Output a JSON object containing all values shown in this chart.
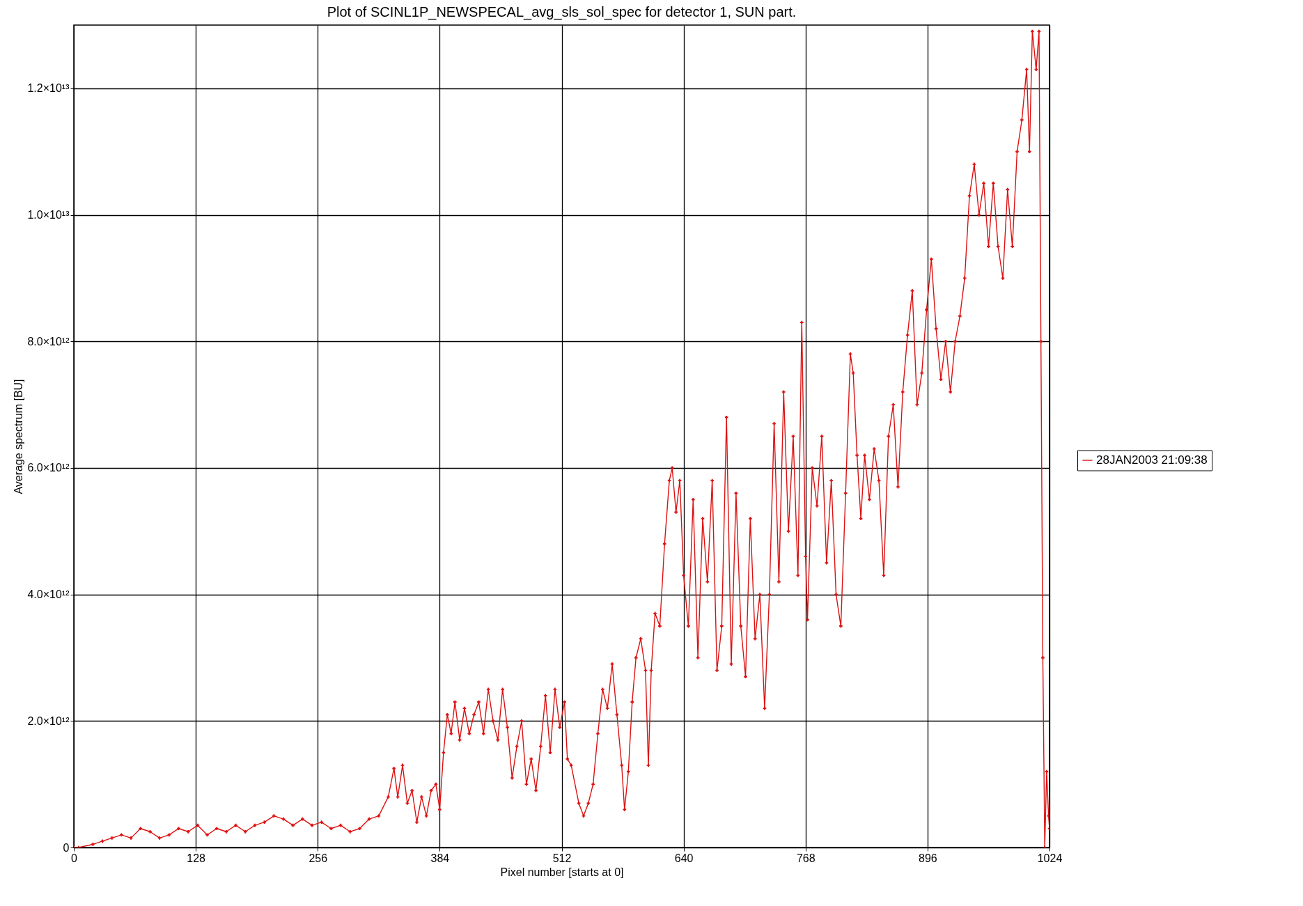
{
  "chart_data": {
    "type": "line",
    "title": "Plot of SCINL1P_NEWSPECAL_avg_sls_sol_spec for detector 1, SUN part.",
    "xlabel": "Pixel number [starts at 0]",
    "ylabel": "Average spectrum [BU]",
    "xlim": [
      0,
      1024
    ],
    "xticks": [
      0,
      128,
      256,
      384,
      512,
      640,
      768,
      896,
      1024
    ],
    "ylim": [
      0,
      13000000000000.0
    ],
    "yticks": [
      0,
      {
        "value": 2000000000000.0,
        "label": "2.0×10¹²"
      },
      {
        "value": 4000000000000.0,
        "label": "4.0×10¹²"
      },
      {
        "value": 6000000000000.0,
        "label": "6.0×10¹²"
      },
      {
        "value": 8000000000000.0,
        "label": "8.0×10¹²"
      },
      {
        "value": 10000000000000.0,
        "label": "1.0×10¹³"
      },
      {
        "value": 12000000000000.0,
        "label": "1.2×10¹³"
      }
    ],
    "grid": true,
    "legend": "right",
    "marker": "cross",
    "line_style": "solid",
    "x": [
      0,
      5,
      20,
      30,
      40,
      50,
      60,
      70,
      80,
      90,
      100,
      110,
      120,
      130,
      140,
      150,
      160,
      170,
      180,
      190,
      200,
      210,
      220,
      230,
      240,
      250,
      260,
      270,
      280,
      290,
      300,
      310,
      320,
      330,
      336,
      340,
      345,
      350,
      355,
      360,
      365,
      370,
      375,
      380,
      384,
      388,
      392,
      396,
      400,
      405,
      410,
      415,
      420,
      425,
      430,
      435,
      440,
      445,
      450,
      455,
      460,
      465,
      470,
      475,
      480,
      485,
      490,
      495,
      500,
      505,
      510,
      515,
      518,
      522,
      530,
      535,
      540,
      545,
      550,
      555,
      560,
      565,
      570,
      575,
      578,
      582,
      586,
      590,
      595,
      600,
      603,
      606,
      610,
      615,
      620,
      625,
      628,
      632,
      636,
      640,
      645,
      650,
      655,
      660,
      665,
      670,
      675,
      680,
      685,
      690,
      695,
      700,
      705,
      710,
      715,
      720,
      725,
      730,
      735,
      740,
      745,
      750,
      755,
      760,
      764,
      768,
      770,
      775,
      780,
      785,
      790,
      795,
      800,
      805,
      810,
      815,
      818,
      822,
      826,
      830,
      835,
      840,
      845,
      850,
      855,
      860,
      865,
      870,
      875,
      880,
      885,
      890,
      895,
      900,
      905,
      910,
      915,
      920,
      925,
      930,
      935,
      940,
      945,
      950,
      955,
      960,
      965,
      970,
      975,
      980,
      985,
      990,
      995,
      1000,
      1003,
      1006,
      1010,
      1013,
      1015,
      1017,
      1019,
      1021,
      1023,
      1024
    ],
    "series": [
      {
        "name": "28JAN2003 21:09:38",
        "color": "#dd1111",
        "values": [
          0,
          0,
          50000000000.0,
          100000000000.0,
          150000000000.0,
          200000000000.0,
          150000000000.0,
          300000000000.0,
          250000000000.0,
          150000000000.0,
          200000000000.0,
          300000000000.0,
          250000000000.0,
          350000000000.0,
          200000000000.0,
          300000000000.0,
          250000000000.0,
          350000000000.0,
          250000000000.0,
          350000000000.0,
          400000000000.0,
          500000000000.0,
          450000000000.0,
          350000000000.0,
          450000000000.0,
          350000000000.0,
          400000000000.0,
          300000000000.0,
          350000000000.0,
          250000000000.0,
          300000000000.0,
          450000000000.0,
          500000000000.0,
          800000000000.0,
          1250000000000.0,
          800000000000.0,
          1300000000000.0,
          700000000000.0,
          900000000000.0,
          400000000000.0,
          800000000000.0,
          500000000000.0,
          900000000000.0,
          1000000000000.0,
          600000000000.0,
          1500000000000.0,
          2100000000000.0,
          1800000000000.0,
          2300000000000.0,
          1700000000000.0,
          2200000000000.0,
          1800000000000.0,
          2100000000000.0,
          2300000000000.0,
          1800000000000.0,
          2500000000000.0,
          2000000000000.0,
          1700000000000.0,
          2500000000000.0,
          1900000000000.0,
          1100000000000.0,
          1600000000000.0,
          2000000000000.0,
          1000000000000.0,
          1400000000000.0,
          900000000000.0,
          1600000000000.0,
          2400000000000.0,
          1500000000000.0,
          2500000000000.0,
          1900000000000.0,
          2300000000000.0,
          1400000000000.0,
          1300000000000.0,
          700000000000.0,
          500000000000.0,
          700000000000.0,
          1000000000000.0,
          1800000000000.0,
          2500000000000.0,
          2200000000000.0,
          2900000000000.0,
          2100000000000.0,
          1300000000000.0,
          600000000000.0,
          1200000000000.0,
          2300000000000.0,
          3000000000000.0,
          3300000000000.0,
          2800000000000.0,
          1300000000000.0,
          2800000000000.0,
          3700000000000.0,
          3500000000000.0,
          4800000000000.0,
          5800000000000.0,
          6000000000000.0,
          5300000000000.0,
          5800000000000.0,
          4300000000000.0,
          3500000000000.0,
          5500000000000.0,
          3000000000000.0,
          5200000000000.0,
          4200000000000.0,
          5800000000000.0,
          2800000000000.0,
          3500000000000.0,
          6800000000000.0,
          2900000000000.0,
          5600000000000.0,
          3500000000000.0,
          2700000000000.0,
          5200000000000.0,
          3300000000000.0,
          4000000000000.0,
          2200000000000.0,
          4000000000000.0,
          6700000000000.0,
          4200000000000.0,
          7200000000000.0,
          5000000000000.0,
          6500000000000.0,
          4300000000000.0,
          8300000000000.0,
          4600000000000.0,
          3600000000000.0,
          6000000000000.0,
          5400000000000.0,
          6500000000000.0,
          4500000000000.0,
          5800000000000.0,
          4000000000000.0,
          3500000000000.0,
          5600000000000.0,
          7800000000000.0,
          7500000000000.0,
          6200000000000.0,
          5200000000000.0,
          6200000000000.0,
          5500000000000.0,
          6300000000000.0,
          5800000000000.0,
          4300000000000.0,
          6500000000000.0,
          7000000000000.0,
          5700000000000.0,
          7200000000000.0,
          8100000000000.0,
          8800000000000.0,
          7000000000000.0,
          7500000000000.0,
          8500000000000.0,
          9300000000000.0,
          8200000000000.0,
          7400000000000.0,
          8000000000000.0,
          7200000000000.0,
          8000000000000.0,
          8400000000000.0,
          9000000000000.0,
          10300000000000.0,
          10800000000000.0,
          10000000000000.0,
          10500000000000.0,
          9500000000000.0,
          10500000000000.0,
          9500000000000.0,
          9000000000000.0,
          10400000000000.0,
          9500000000000.0,
          11000000000000.0,
          11500000000000.0,
          12300000000000.0,
          11000000000000.0,
          12900000000000.0,
          12300000000000.0,
          12900000000000.0,
          8000000000000.0,
          3000000000000.0,
          0,
          1200000000000.0,
          500000000000.0,
          300000000000.0
        ]
      }
    ]
  }
}
